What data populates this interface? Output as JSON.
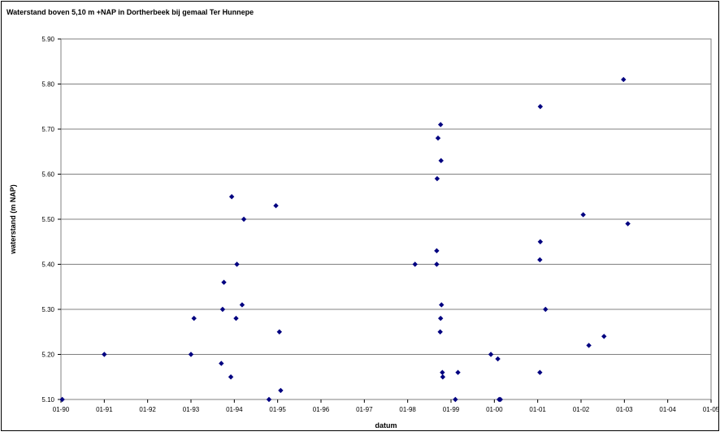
{
  "chart_data": {
    "type": "scatter",
    "title": "Waterstand  boven 5,10 m +NAP in Dortherbeek bij gemaal Ter Hunnepe",
    "xlabel": "datum",
    "ylabel": "waterstand (m NAP)",
    "xlim": [
      1990.0,
      2005.0
    ],
    "ylim": [
      5.1,
      5.9
    ],
    "y_ticks": [
      "5.10",
      "5.20",
      "5.30",
      "5.40",
      "5.50",
      "5.60",
      "5.70",
      "5.80",
      "5.90"
    ],
    "x_tick_labels": [
      "01-90",
      "01-91",
      "01-92",
      "01-93",
      "01-94",
      "01-95",
      "01-96",
      "01-97",
      "01-98",
      "01-99",
      "01-00",
      "01-01",
      "01-02",
      "01-03",
      "01-04",
      "01-05"
    ],
    "grid": "horizontal",
    "legend": "none",
    "marker_color": "#000080",
    "points": [
      [
        1990.03,
        5.1
      ],
      [
        1991.0,
        5.2
      ],
      [
        1993.0,
        5.2
      ],
      [
        1993.07,
        5.28
      ],
      [
        1993.7,
        5.18
      ],
      [
        1993.73,
        5.3
      ],
      [
        1993.76,
        5.36
      ],
      [
        1993.92,
        5.15
      ],
      [
        1993.94,
        5.55
      ],
      [
        1994.04,
        5.28
      ],
      [
        1994.06,
        5.4
      ],
      [
        1994.18,
        5.31
      ],
      [
        1994.22,
        5.5
      ],
      [
        1994.8,
        5.1
      ],
      [
        1994.96,
        5.53
      ],
      [
        1995.04,
        5.25
      ],
      [
        1995.07,
        5.12
      ],
      [
        1998.17,
        5.4
      ],
      [
        1998.67,
        5.43
      ],
      [
        1998.67,
        5.4
      ],
      [
        1998.68,
        5.59
      ],
      [
        1998.7,
        5.68
      ],
      [
        1998.75,
        5.25
      ],
      [
        1998.76,
        5.28
      ],
      [
        1998.76,
        5.71
      ],
      [
        1998.77,
        5.63
      ],
      [
        1998.78,
        5.31
      ],
      [
        1998.8,
        5.16
      ],
      [
        1998.81,
        5.15
      ],
      [
        1999.1,
        5.1
      ],
      [
        1999.16,
        5.16
      ],
      [
        1999.92,
        5.2
      ],
      [
        2000.08,
        5.19
      ],
      [
        2000.11,
        5.1
      ],
      [
        2000.14,
        5.1
      ],
      [
        2001.05,
        5.16
      ],
      [
        2001.05,
        5.41
      ],
      [
        2001.06,
        5.45
      ],
      [
        2001.06,
        5.75
      ],
      [
        2001.18,
        5.3
      ],
      [
        2002.05,
        5.51
      ],
      [
        2002.18,
        5.22
      ],
      [
        2002.53,
        5.24
      ],
      [
        2002.98,
        5.81
      ],
      [
        2003.08,
        5.49
      ]
    ]
  }
}
